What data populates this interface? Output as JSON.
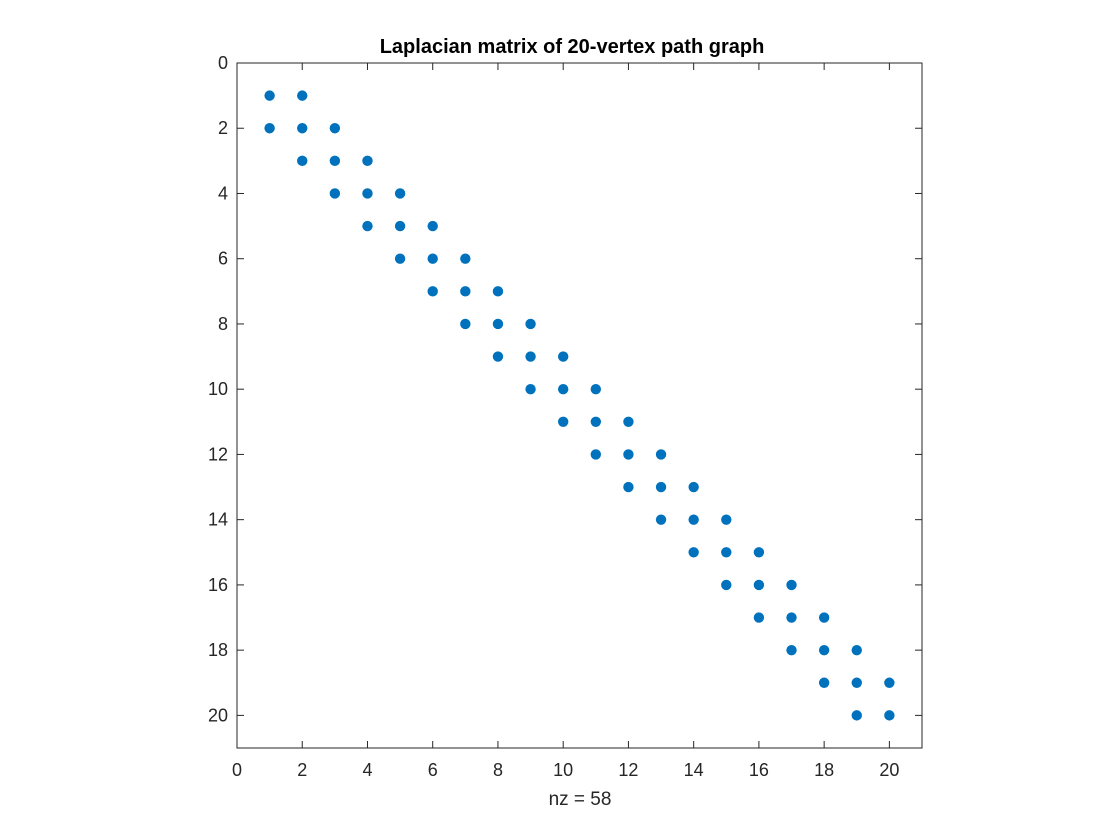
{
  "chart_data": {
    "type": "scatter",
    "title": "Laplacian matrix of 20-vertex path graph",
    "xlabel": "nz = 58",
    "ylabel": "",
    "xlim": [
      0,
      21
    ],
    "ylim": [
      0,
      21
    ],
    "y_reversed": true,
    "grid": false,
    "legend": "none",
    "marker_color": "#0072BD",
    "xticks": [
      "0",
      "2",
      "4",
      "6",
      "8",
      "10",
      "12",
      "14",
      "16",
      "18",
      "20"
    ],
    "yticks": [
      "0",
      "2",
      "4",
      "6",
      "8",
      "10",
      "12",
      "14",
      "16",
      "18",
      "20"
    ],
    "points": [
      {
        "x": 1,
        "y": 1
      },
      {
        "x": 2,
        "y": 1
      },
      {
        "x": 1,
        "y": 2
      },
      {
        "x": 2,
        "y": 2
      },
      {
        "x": 3,
        "y": 2
      },
      {
        "x": 2,
        "y": 3
      },
      {
        "x": 3,
        "y": 3
      },
      {
        "x": 4,
        "y": 3
      },
      {
        "x": 3,
        "y": 4
      },
      {
        "x": 4,
        "y": 4
      },
      {
        "x": 5,
        "y": 4
      },
      {
        "x": 4,
        "y": 5
      },
      {
        "x": 5,
        "y": 5
      },
      {
        "x": 6,
        "y": 5
      },
      {
        "x": 5,
        "y": 6
      },
      {
        "x": 6,
        "y": 6
      },
      {
        "x": 7,
        "y": 6
      },
      {
        "x": 6,
        "y": 7
      },
      {
        "x": 7,
        "y": 7
      },
      {
        "x": 8,
        "y": 7
      },
      {
        "x": 7,
        "y": 8
      },
      {
        "x": 8,
        "y": 8
      },
      {
        "x": 9,
        "y": 8
      },
      {
        "x": 8,
        "y": 9
      },
      {
        "x": 9,
        "y": 9
      },
      {
        "x": 10,
        "y": 9
      },
      {
        "x": 9,
        "y": 10
      },
      {
        "x": 10,
        "y": 10
      },
      {
        "x": 11,
        "y": 10
      },
      {
        "x": 10,
        "y": 11
      },
      {
        "x": 11,
        "y": 11
      },
      {
        "x": 12,
        "y": 11
      },
      {
        "x": 11,
        "y": 12
      },
      {
        "x": 12,
        "y": 12
      },
      {
        "x": 13,
        "y": 12
      },
      {
        "x": 12,
        "y": 13
      },
      {
        "x": 13,
        "y": 13
      },
      {
        "x": 14,
        "y": 13
      },
      {
        "x": 13,
        "y": 14
      },
      {
        "x": 14,
        "y": 14
      },
      {
        "x": 15,
        "y": 14
      },
      {
        "x": 14,
        "y": 15
      },
      {
        "x": 15,
        "y": 15
      },
      {
        "x": 16,
        "y": 15
      },
      {
        "x": 15,
        "y": 16
      },
      {
        "x": 16,
        "y": 16
      },
      {
        "x": 17,
        "y": 16
      },
      {
        "x": 16,
        "y": 17
      },
      {
        "x": 17,
        "y": 17
      },
      {
        "x": 18,
        "y": 17
      },
      {
        "x": 17,
        "y": 18
      },
      {
        "x": 18,
        "y": 18
      },
      {
        "x": 19,
        "y": 18
      },
      {
        "x": 18,
        "y": 19
      },
      {
        "x": 19,
        "y": 19
      },
      {
        "x": 20,
        "y": 19
      },
      {
        "x": 19,
        "y": 20
      },
      {
        "x": 20,
        "y": 20
      }
    ]
  }
}
